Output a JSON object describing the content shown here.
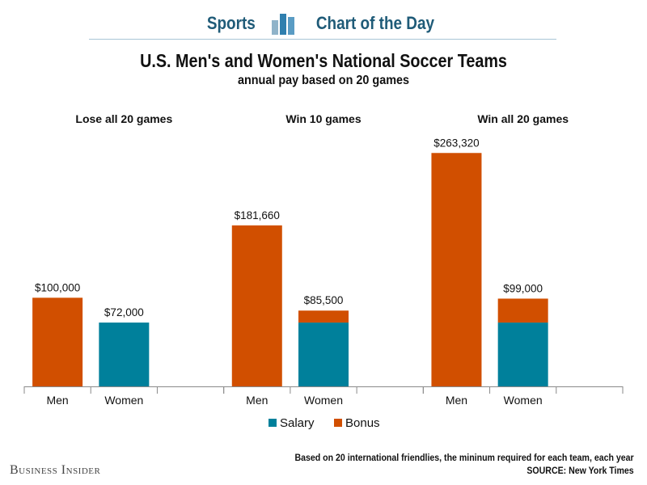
{
  "header": {
    "left_label": "Sports",
    "right_label": "Chart of the Day",
    "icon": "bar-chart-icon"
  },
  "chart_data": {
    "type": "bar",
    "stacked": true,
    "title": "U.S. Men's and Women's National Soccer Teams",
    "subtitle": "annual pay based on 20 games",
    "groups": [
      {
        "label": "Lose all 20 games",
        "bars": [
          {
            "category": "Men",
            "salary": 0,
            "bonus": 100000,
            "total_label": "$100,000"
          },
          {
            "category": "Women",
            "salary": 72000,
            "bonus": 0,
            "total_label": "$72,000"
          }
        ]
      },
      {
        "label": "Win 10 games",
        "bars": [
          {
            "category": "Men",
            "salary": 0,
            "bonus": 181660,
            "total_label": "$181,660"
          },
          {
            "category": "Women",
            "salary": 72000,
            "bonus": 13500,
            "total_label": "$85,500"
          }
        ]
      },
      {
        "label": "Win all 20 games",
        "bars": [
          {
            "category": "Men",
            "salary": 0,
            "bonus": 263320,
            "total_label": "$263,320"
          },
          {
            "category": "Women",
            "salary": 72000,
            "bonus": 27000,
            "total_label": "$99,000"
          }
        ]
      }
    ],
    "series": [
      {
        "name": "Salary",
        "color": "#00809b"
      },
      {
        "name": "Bonus",
        "color": "#d14f00"
      }
    ],
    "ylim": [
      0,
      290000
    ],
    "grid": false,
    "legend": "bottom-center"
  },
  "footer": {
    "note": "Based on 20 international friendlies, the mininum required for each team, each year",
    "source": "SOURCE: New York Times",
    "brand": "Business Insider"
  }
}
